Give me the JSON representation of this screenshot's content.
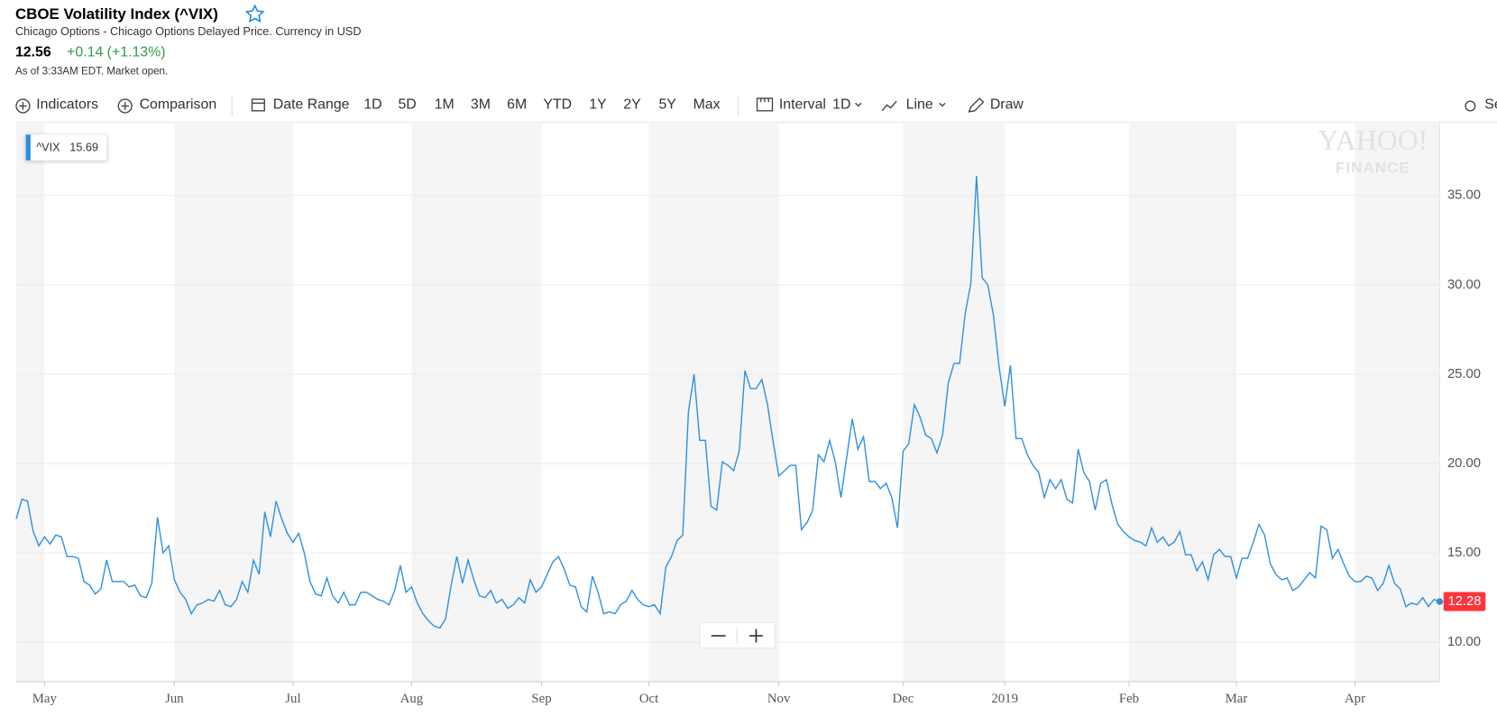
{
  "header": {
    "title": "CBOE Volatility Index (^VIX)",
    "subtitle": "Chicago Options - Chicago Options Delayed Price. Currency in USD",
    "price": "12.56",
    "change": "+0.14 (+1.13%)",
    "as_of": "As of 3:33AM EDT. Market open."
  },
  "toolbar": {
    "indicators": "Indicators",
    "comparison": "Comparison",
    "date_range": "Date Range",
    "ranges": [
      "1D",
      "5D",
      "1M",
      "3M",
      "6M",
      "YTD",
      "1Y",
      "2Y",
      "5Y",
      "Max"
    ],
    "interval_label": "Interval",
    "interval": "1D",
    "chart_type": "Line",
    "draw": "Draw",
    "settings": "Settings"
  },
  "watermark": [
    "YAHOO!",
    "FINANCE"
  ],
  "chart_data": {
    "type": "line",
    "hover_value": 15.69,
    "series": [
      {
        "name": "^VIX",
        "color": "#2c8fe0",
        "values": [
          16.9,
          18.0,
          17.9,
          16.2,
          15.4,
          15.9,
          15.5,
          16.0,
          15.9,
          14.8,
          14.8,
          14.7,
          13.4,
          13.2,
          12.7,
          13.0,
          14.6,
          13.4,
          13.4,
          13.4,
          13.1,
          13.2,
          12.6,
          12.5,
          13.3,
          17.0,
          15.0,
          15.4,
          13.5,
          12.8,
          12.4,
          11.6,
          12.1,
          12.2,
          12.4,
          12.3,
          12.9,
          12.1,
          12.0,
          12.4,
          13.4,
          12.8,
          14.6,
          13.8,
          17.3,
          15.9,
          17.9,
          16.9,
          16.1,
          15.6,
          16.1,
          15.0,
          13.4,
          12.7,
          12.6,
          13.6,
          12.6,
          12.2,
          12.8,
          12.1,
          12.1,
          12.8,
          12.8,
          12.6,
          12.4,
          12.3,
          12.1,
          12.9,
          14.3,
          12.8,
          13.1,
          12.2,
          11.6,
          11.2,
          10.9,
          10.8,
          11.3,
          13.2,
          14.8,
          13.3,
          14.6,
          13.5,
          12.6,
          12.5,
          12.9,
          12.2,
          12.4,
          11.9,
          12.1,
          12.5,
          12.2,
          13.5,
          12.8,
          13.1,
          13.8,
          14.5,
          14.8,
          14.1,
          13.2,
          13.1,
          12.0,
          11.7,
          13.7,
          12.8,
          11.6,
          11.7,
          11.6,
          12.1,
          12.3,
          12.9,
          12.4,
          12.1,
          12.0,
          12.1,
          11.6,
          14.2,
          14.8,
          15.7,
          16.0,
          22.9,
          25.0,
          21.3,
          21.3,
          17.6,
          17.4,
          20.1,
          19.9,
          19.6,
          20.7,
          25.2,
          24.2,
          24.2,
          24.7,
          23.3,
          21.2,
          19.3,
          19.6,
          19.9,
          19.9,
          16.3,
          16.7,
          17.4,
          20.5,
          20.1,
          21.3,
          20.1,
          18.1,
          20.3,
          22.5,
          20.8,
          21.5,
          19.0,
          19.0,
          18.6,
          18.9,
          18.1,
          16.4,
          20.7,
          21.1,
          23.3,
          22.6,
          21.6,
          21.4,
          20.6,
          21.6,
          24.5,
          25.6,
          25.6,
          28.4,
          30.1,
          36.1,
          30.4,
          30.0,
          28.3,
          25.4,
          23.2,
          25.5,
          21.4,
          21.4,
          20.5,
          19.9,
          19.5,
          18.1,
          19.1,
          18.6,
          19.1,
          18.0,
          17.8,
          20.8,
          19.5,
          19.0,
          17.4,
          18.9,
          19.1,
          17.7,
          16.6,
          16.2,
          15.9,
          15.7,
          15.6,
          15.4,
          16.4,
          15.6,
          15.9,
          15.4,
          15.6,
          16.2,
          14.9,
          14.9,
          14.0,
          14.5,
          13.5,
          14.9,
          15.2,
          14.8,
          14.8,
          13.6,
          14.7,
          14.7,
          15.6,
          16.6,
          16.0,
          14.4,
          13.8,
          13.5,
          13.6,
          12.9,
          13.1,
          13.5,
          13.9,
          13.6,
          16.5,
          16.3,
          14.7,
          15.2,
          14.4,
          13.7,
          13.4,
          13.4,
          13.7,
          13.6,
          12.9,
          13.3,
          14.3,
          13.3,
          13.0,
          12.0,
          12.2,
          12.1,
          12.5,
          12.0,
          12.4,
          12.28
        ]
      }
    ],
    "xlim": [
      0,
      252
    ],
    "xticks": [
      {
        "value": 5,
        "label": "May"
      },
      {
        "value": 28,
        "label": "Jun"
      },
      {
        "value": 49,
        "label": "Jul"
      },
      {
        "value": 70,
        "label": "Aug"
      },
      {
        "value": 93,
        "label": "Sep"
      },
      {
        "value": 112,
        "label": "Oct"
      },
      {
        "value": 135,
        "label": "Nov"
      },
      {
        "value": 157,
        "label": "Dec"
      },
      {
        "value": 175,
        "label": "2019"
      },
      {
        "value": 197,
        "label": "Feb"
      },
      {
        "value": 216,
        "label": "Mar"
      },
      {
        "value": 237,
        "label": "Apr"
      }
    ],
    "ylim": [
      7.8,
      39.1
    ],
    "yticks": [
      {
        "value": 10,
        "label": "10.00"
      },
      {
        "value": 15,
        "label": "15.00"
      },
      {
        "value": 20,
        "label": "20.00"
      },
      {
        "value": 25,
        "label": "25.00"
      },
      {
        "value": 30,
        "label": "30.00"
      },
      {
        "value": 35,
        "label": "35.00"
      }
    ],
    "grid": true
  }
}
